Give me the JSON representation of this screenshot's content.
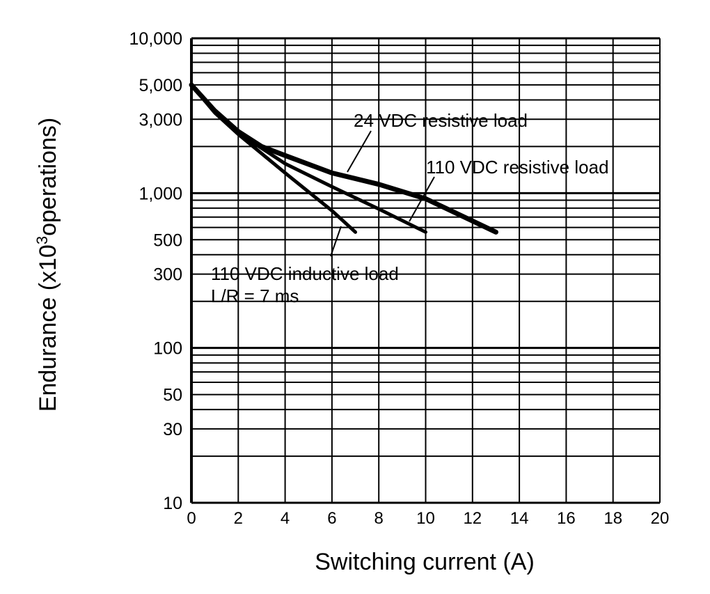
{
  "chart_data": {
    "type": "line",
    "xlabel": "Switching current (A)",
    "ylabel_main": "Endurance (x10",
    "ylabel_sup": "3",
    "ylabel_tail": "operations)",
    "xlim": [
      0,
      20
    ],
    "ylim": [
      10,
      10000
    ],
    "yscale": "log",
    "grid": true,
    "xticks": [
      0,
      2,
      4,
      6,
      8,
      10,
      12,
      14,
      16,
      18,
      20
    ],
    "yticks": [
      {
        "v": 10,
        "label": "10"
      },
      {
        "v": 30,
        "label": "30"
      },
      {
        "v": 50,
        "label": "50"
      },
      {
        "v": 100,
        "label": "100"
      },
      {
        "v": 300,
        "label": "300"
      },
      {
        "v": 500,
        "label": "500"
      },
      {
        "v": 1000,
        "label": "1,000"
      },
      {
        "v": 3000,
        "label": "3,000"
      },
      {
        "v": 5000,
        "label": "5,000"
      },
      {
        "v": 10000,
        "label": "10,000"
      }
    ],
    "series": [
      {
        "name": "24 VDC resistive load",
        "x": [
          0,
          1,
          2,
          3,
          4,
          6,
          8,
          10,
          13
        ],
        "y": [
          5000,
          3400,
          2500,
          2000,
          1750,
          1350,
          1140,
          920,
          560
        ]
      },
      {
        "name": "110 VDC resistive load",
        "x": [
          0,
          1,
          2,
          3,
          4,
          6,
          8,
          10
        ],
        "y": [
          5000,
          3400,
          2450,
          1950,
          1550,
          1100,
          790,
          560
        ]
      },
      {
        "name": "110 VDC inductive load",
        "x": [
          0,
          1,
          2,
          3,
          4,
          6,
          7
        ],
        "y": [
          5000,
          3300,
          2400,
          1800,
          1350,
          770,
          560
        ]
      }
    ],
    "annotations": [
      {
        "text": "24 VDC resistive load"
      },
      {
        "text": "110 VDC resistive load"
      },
      {
        "text": "110 VDC inductive load"
      },
      {
        "text": "L/R = 7 ms"
      }
    ]
  }
}
